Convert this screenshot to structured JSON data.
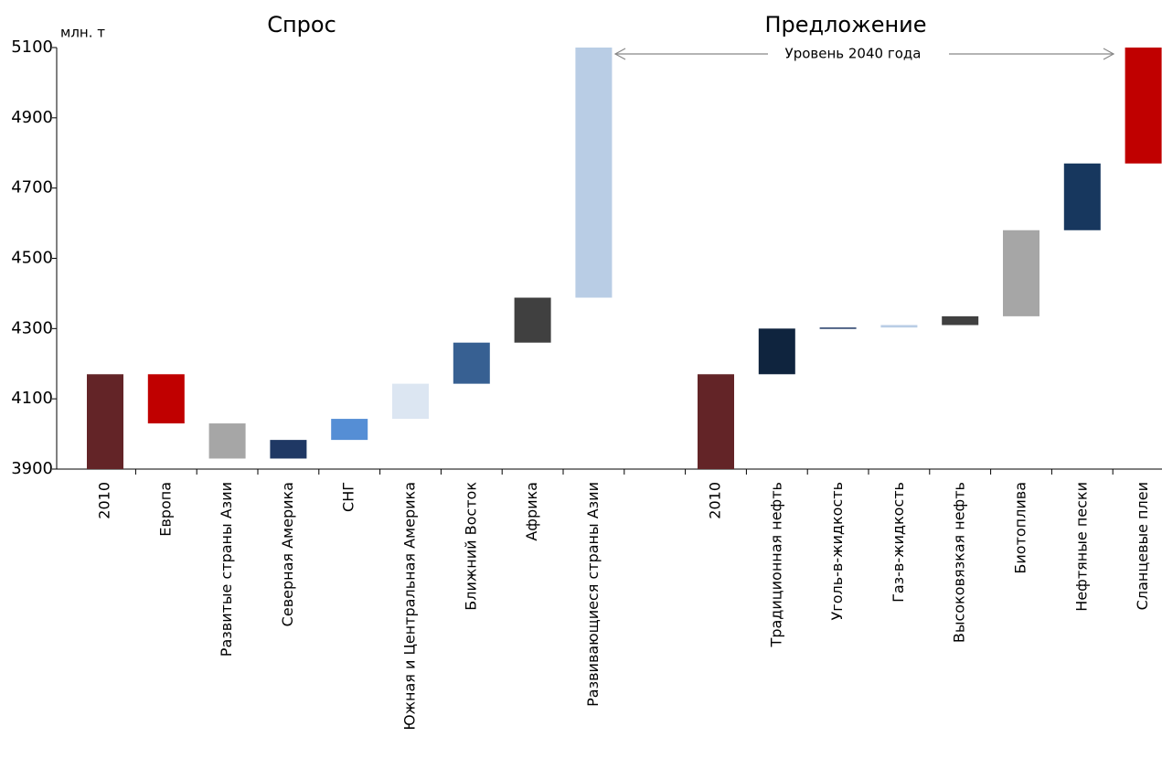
{
  "chart_data": {
    "type": "waterfall",
    "titles": [
      "Спрос",
      "Предложение"
    ],
    "y_label": "млн. т",
    "annotation": "Уровень 2040 года",
    "categories": [
      "2010",
      "Европа",
      "Развитые страны Азии",
      "Северная Америка",
      "СНГ",
      "Южная и Центральная Америка",
      "Ближний Восток",
      "Африка",
      "Развивающиеся страны Азии",
      null,
      "2010",
      "Традиционная нефть",
      "Уголь-в-жидкость",
      "Газ-в-жидкость",
      "Высоковязкая нефть",
      "Биотоплива",
      "Нефтяные пески",
      "Сланцевые плеи"
    ],
    "values": [
      4170,
      -140,
      -100,
      53,
      60,
      100,
      117,
      128,
      712,
      null,
      4170,
      130,
      3,
      7,
      25,
      245,
      190,
      330
    ],
    "colors": [
      "#632427",
      "#c00000",
      "#a6a6a6",
      "#1f3864",
      "#558ed5",
      "#dce6f2",
      "#376092",
      "#404040",
      "#b9cde5",
      null,
      "#632427",
      "#0f243e",
      "#1f3864",
      "#b9cde5",
      "#404040",
      "#a6a6a6",
      "#17375e",
      "#c00000"
    ],
    "ylim": [
      3900,
      5100
    ],
    "yticks": [
      3900,
      4100,
      4300,
      4500,
      4700,
      4900,
      5100
    ]
  }
}
